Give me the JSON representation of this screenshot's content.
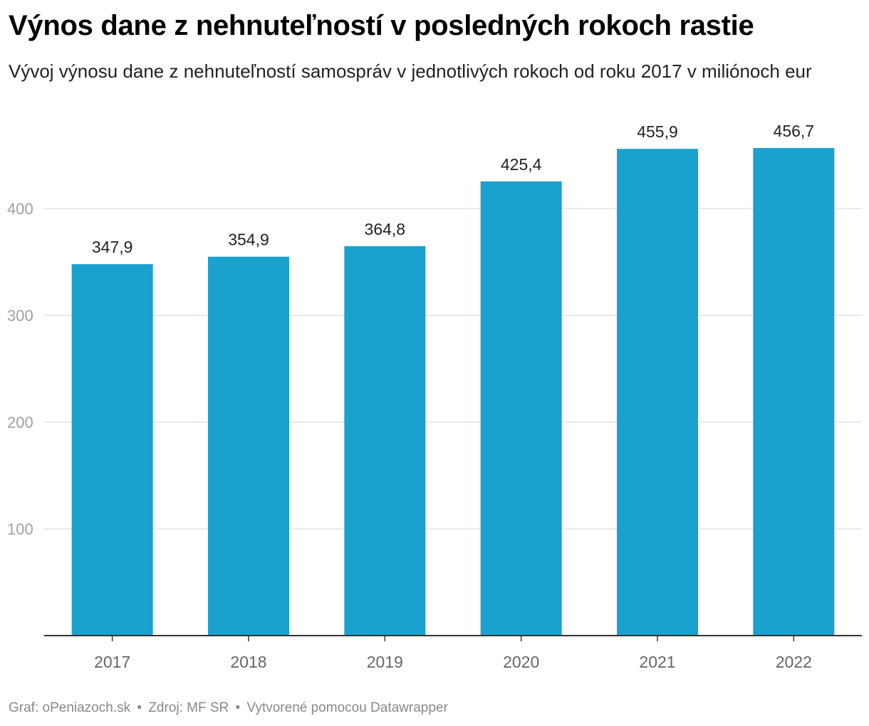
{
  "title": "Výnos dane z nehnuteľností v posledných rokoch rastie",
  "subtitle": "Vývoj výnosu dane z nehnuteľností samospráv v jednotlivých rokoch od roku 2017 v miliónoch eur",
  "footer": {
    "graf": "Graf: oPeniazoch.sk",
    "zdroj": "Zdroj: MF SR",
    "tool": "Vytvorené pomocou Datawrapper",
    "separator": "•"
  },
  "colors": {
    "bar": "#1aa1ce",
    "grid": "#e3e3e3",
    "axis": "#333333"
  },
  "chart_data": {
    "type": "bar",
    "title": "Výnos dane z nehnuteľností v posledných rokoch rastie",
    "xlabel": "",
    "ylabel": "",
    "categories": [
      "2017",
      "2018",
      "2019",
      "2020",
      "2021",
      "2022"
    ],
    "values": [
      347.9,
      354.9,
      364.8,
      425.4,
      455.9,
      456.7
    ],
    "value_labels": [
      "347,9",
      "354,9",
      "364,8",
      "425,4",
      "455,9",
      "456,7"
    ],
    "yticks": [
      100,
      200,
      300,
      400
    ],
    "ylim": [
      0,
      475
    ],
    "grid": true,
    "legend": "none"
  }
}
